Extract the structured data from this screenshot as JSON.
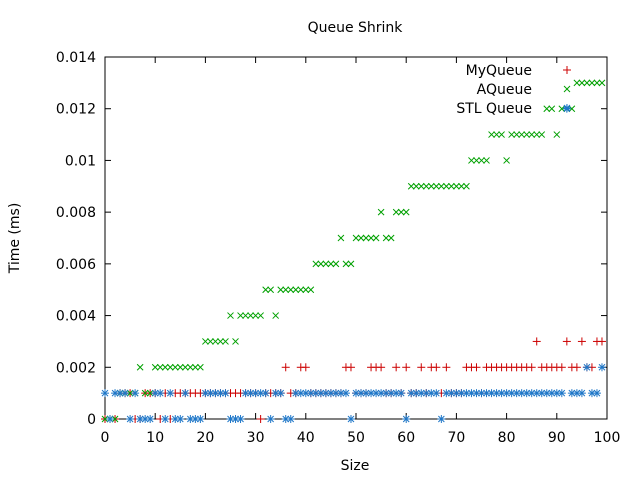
{
  "chart_data": {
    "type": "scatter",
    "title": "Queue Shrink",
    "xlabel": "Size",
    "ylabel": "Time (ms)",
    "xlim": [
      0,
      100
    ],
    "ylim": [
      0,
      0.014
    ],
    "xticks": [
      0,
      10,
      20,
      30,
      40,
      50,
      60,
      70,
      80,
      90,
      100
    ],
    "xtick_labels": [
      "0",
      "10",
      "20",
      "30",
      "40",
      "50",
      "60",
      "70",
      "80",
      "90",
      "100"
    ],
    "yticks": [
      0,
      0.002,
      0.004,
      0.006,
      0.008,
      0.01,
      0.012,
      0.014
    ],
    "ytick_labels": [
      "0",
      "0.002",
      "0.004",
      "0.006",
      "0.008",
      "0.01",
      "0.012",
      "0.014"
    ],
    "grid": false,
    "legend_position": "top-right",
    "x": [
      0,
      1,
      2,
      3,
      4,
      5,
      6,
      7,
      8,
      9,
      10,
      11,
      12,
      13,
      14,
      15,
      16,
      17,
      18,
      19,
      20,
      21,
      22,
      23,
      24,
      25,
      26,
      27,
      28,
      29,
      30,
      31,
      32,
      33,
      34,
      35,
      36,
      37,
      38,
      39,
      40,
      41,
      42,
      43,
      44,
      45,
      46,
      47,
      48,
      49,
      50,
      51,
      52,
      53,
      54,
      55,
      56,
      57,
      58,
      59,
      60,
      61,
      62,
      63,
      64,
      65,
      66,
      67,
      68,
      69,
      70,
      71,
      72,
      73,
      74,
      75,
      76,
      77,
      78,
      79,
      80,
      81,
      82,
      83,
      84,
      85,
      86,
      87,
      88,
      89,
      90,
      91,
      92,
      93,
      94,
      95,
      96,
      97,
      98,
      99
    ],
    "series": [
      {
        "name": "MyQueue",
        "color": "#cc0000",
        "marker": "plus",
        "values": [
          0,
          0,
          0,
          0.001,
          0.001,
          0.001,
          0,
          0,
          0.001,
          0.001,
          0.001,
          0,
          0.001,
          0,
          0.001,
          0.001,
          0.001,
          0.001,
          0.001,
          0.001,
          0.001,
          0.001,
          0.001,
          0.001,
          0.001,
          0.001,
          0.001,
          0.001,
          0.001,
          0.001,
          0.001,
          0,
          0.001,
          0.001,
          0.001,
          0.001,
          0.002,
          0.001,
          0.001,
          0.002,
          0.002,
          0.001,
          0.001,
          0.001,
          0.001,
          0.001,
          0.001,
          0.001,
          0.002,
          0.002,
          0.001,
          0.001,
          0.001,
          0.002,
          0.002,
          0.002,
          0.001,
          0.001,
          0.002,
          0.001,
          0.002,
          0.001,
          0.001,
          0.002,
          0.001,
          0.002,
          0.002,
          0.001,
          0.002,
          0.001,
          0.001,
          0.001,
          0.002,
          0.002,
          0.002,
          0.001,
          0.002,
          0.002,
          0.002,
          0.002,
          0.002,
          0.002,
          0.002,
          0.002,
          0.002,
          0.002,
          0.003,
          0.002,
          0.002,
          0.002,
          0.002,
          0.002,
          0.003,
          0.002,
          0.002,
          0.003,
          0.002,
          0.002,
          0.003,
          0.003
        ]
      },
      {
        "name": "AQueue",
        "color": "#00a000",
        "marker": "cross",
        "values": [
          0,
          0,
          0,
          0.001,
          0.001,
          0.001,
          0.001,
          0.002,
          0.001,
          0.001,
          0.002,
          0.002,
          0.002,
          0.002,
          0.002,
          0.002,
          0.002,
          0.002,
          0.002,
          0.002,
          0.003,
          0.003,
          0.003,
          0.003,
          0.003,
          0.004,
          0.003,
          0.004,
          0.004,
          0.004,
          0.004,
          0.004,
          0.005,
          0.005,
          0.004,
          0.005,
          0.005,
          0.005,
          0.005,
          0.005,
          0.005,
          0.005,
          0.006,
          0.006,
          0.006,
          0.006,
          0.006,
          0.007,
          0.006,
          0.006,
          0.007,
          0.007,
          0.007,
          0.007,
          0.007,
          0.008,
          0.007,
          0.007,
          0.008,
          0.008,
          0.008,
          0.009,
          0.009,
          0.009,
          0.009,
          0.009,
          0.009,
          0.009,
          0.009,
          0.009,
          0.009,
          0.009,
          0.009,
          0.01,
          0.01,
          0.01,
          0.01,
          0.011,
          0.011,
          0.011,
          0.01,
          0.011,
          0.011,
          0.011,
          0.011,
          0.011,
          0.011,
          0.011,
          0.012,
          0.012,
          0.011,
          0.012,
          0.012,
          0.012,
          0.013,
          0.013,
          0.013,
          0.013,
          0.013,
          0.013
        ]
      },
      {
        "name": "STL Queue",
        "color": "#1f77c8",
        "marker": "star",
        "values": [
          0.001,
          0,
          0.001,
          0.001,
          0.001,
          0,
          0.001,
          0,
          0,
          0,
          0.001,
          0.001,
          0,
          0.001,
          0,
          0,
          0.001,
          0,
          0,
          0,
          0.001,
          0.001,
          0.001,
          0.001,
          0.001,
          0,
          0,
          0,
          0.001,
          0.001,
          0.001,
          0.001,
          0.001,
          0,
          0.001,
          0.001,
          0,
          0,
          0.001,
          0.001,
          0.001,
          0.001,
          0.001,
          0.001,
          0.001,
          0.001,
          0.001,
          0.001,
          0.001,
          0,
          0.001,
          0.001,
          0.001,
          0.001,
          0.001,
          0.001,
          0.001,
          0.001,
          0.001,
          0.001,
          0,
          0.001,
          0.001,
          0.001,
          0.001,
          0.001,
          0.001,
          0,
          0.001,
          0.001,
          0.001,
          0.001,
          0.001,
          0.001,
          0.001,
          0.001,
          0.001,
          0.001,
          0.001,
          0.001,
          0.001,
          0.001,
          0.001,
          0.001,
          0.001,
          0.001,
          0.001,
          0.001,
          0.001,
          0.001,
          0.001,
          0.001,
          0.012,
          0.001,
          0.001,
          0.001,
          0.002,
          0.001,
          0.001,
          0.002
        ]
      }
    ]
  }
}
